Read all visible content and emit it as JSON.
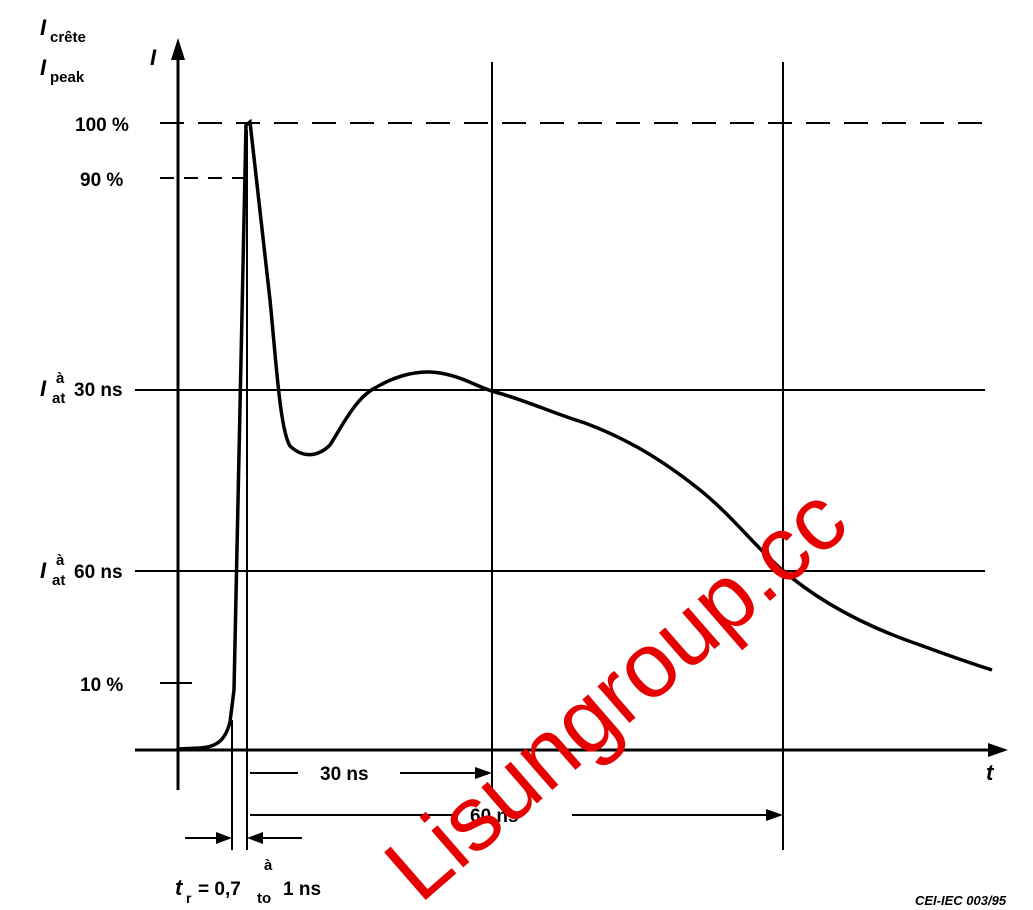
{
  "labels": {
    "axis_i_crete": "I",
    "axis_i_crete_sub": "crête",
    "axis_i_peak": "I",
    "axis_i_peak_sub": "peak",
    "axis_i": "I",
    "axis_t": "t",
    "pct_100": "100 %",
    "pct_90": "90 %",
    "pct_10": "10 %",
    "i30_i": "I",
    "i30_a": "à",
    "i30_at": "at",
    "i30_value": "30 ns",
    "i60_i": "I",
    "i60_a": "à",
    "i60_at": "at",
    "i60_value": "60 ns",
    "dim_30": "30 ns",
    "dim_60": "60 ns",
    "tr_t": "t",
    "tr_r": "r",
    "tr_eq": "= 0,7",
    "tr_a": "à",
    "tr_to": "to",
    "tr_end": "1 ns",
    "ref_code": "CEI-IEC  003/95"
  },
  "watermark": "Lisungroup.cc",
  "colors": {
    "ink": "#000000",
    "watermark": "#e60000"
  }
}
